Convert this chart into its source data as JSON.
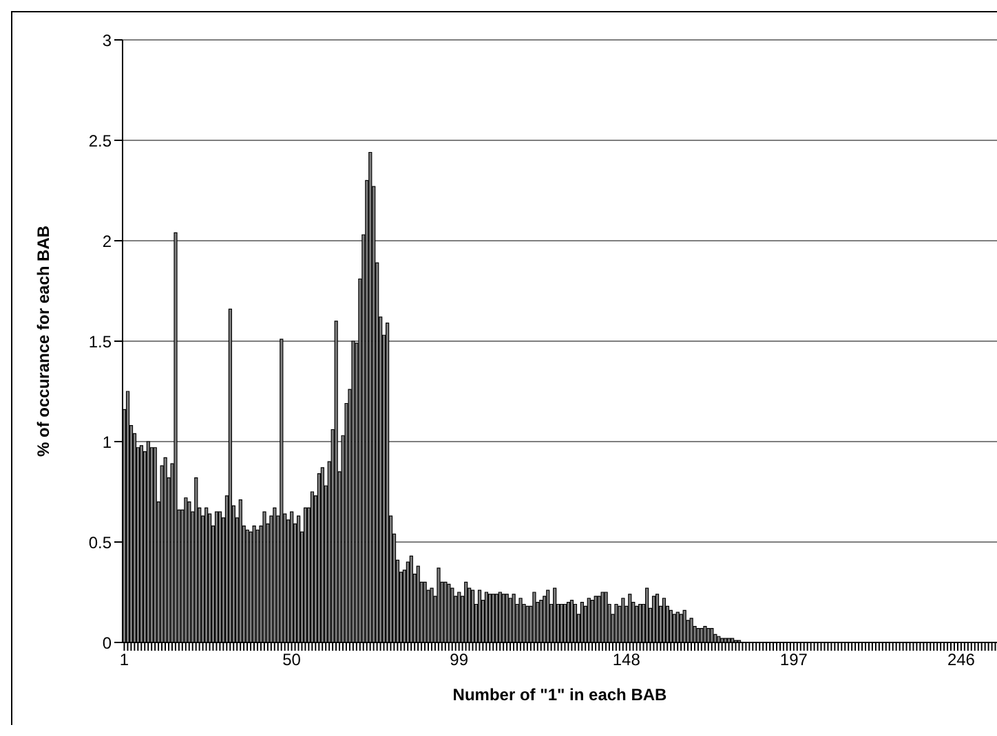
{
  "chart_data": {
    "type": "bar",
    "xlabel": "Number of \"1\" in each BAB",
    "ylabel": "% of occurance for each BAB",
    "categories": [
      "1",
      null,
      null,
      null,
      null,
      null,
      null,
      null,
      null,
      null,
      null,
      null,
      null,
      null,
      null,
      null,
      null,
      null,
      null,
      null,
      null,
      null,
      null,
      null,
      null,
      null,
      null,
      null,
      null,
      null,
      null,
      null,
      null,
      null,
      null,
      null,
      null,
      null,
      null,
      null,
      null,
      null,
      null,
      null,
      null,
      null,
      null,
      null,
      null,
      "50",
      null,
      null,
      null,
      null,
      null,
      null,
      null,
      null,
      null,
      null,
      null,
      null,
      null,
      null,
      null,
      null,
      null,
      null,
      null,
      null,
      null,
      null,
      null,
      null,
      null,
      null,
      null,
      null,
      null,
      null,
      null,
      null,
      null,
      null,
      null,
      null,
      null,
      null,
      null,
      null,
      null,
      null,
      null,
      null,
      null,
      null,
      null,
      null,
      "99",
      null,
      null,
      null,
      null,
      null,
      null,
      null,
      null,
      null,
      null,
      null,
      null,
      null,
      null,
      null,
      null,
      null,
      null,
      null,
      null,
      null,
      null,
      null,
      null,
      null,
      null,
      null,
      null,
      null,
      null,
      null,
      null,
      null,
      null,
      null,
      null,
      null,
      null,
      null,
      null,
      null,
      null,
      null,
      null,
      null,
      null,
      null,
      null,
      "148",
      null,
      null,
      null,
      null,
      null,
      null,
      null,
      null,
      null,
      null,
      null,
      null,
      null,
      null,
      null,
      null,
      null,
      null,
      null,
      null,
      null,
      null,
      null,
      null,
      null,
      null,
      null,
      null,
      null,
      null,
      null,
      null,
      null,
      null,
      null,
      null,
      null,
      null,
      null,
      null,
      null,
      null,
      null,
      null,
      null,
      null,
      null,
      null,
      "197",
      null,
      null,
      null,
      null,
      null,
      null,
      null,
      null,
      null,
      null,
      null,
      null,
      null,
      null,
      null,
      null,
      null,
      null,
      null,
      null,
      null,
      null,
      null,
      null,
      null,
      null,
      null,
      null,
      null,
      null,
      null,
      null,
      null,
      null,
      null,
      null,
      null,
      null,
      null,
      null,
      null,
      null,
      null,
      null,
      null,
      null,
      null,
      null,
      "246",
      null,
      null,
      null,
      null,
      null,
      null,
      null,
      null,
      null,
      null
    ],
    "values": [
      1.16,
      1.25,
      1.08,
      1.04,
      0.97,
      0.98,
      0.95,
      1.0,
      0.97,
      0.97,
      0.7,
      0.88,
      0.92,
      0.82,
      0.89,
      2.04,
      0.66,
      0.66,
      0.72,
      0.7,
      0.65,
      0.82,
      0.67,
      0.63,
      0.67,
      0.64,
      0.58,
      0.65,
      0.65,
      0.62,
      0.73,
      1.66,
      0.68,
      0.62,
      0.71,
      0.58,
      0.56,
      0.55,
      0.58,
      0.56,
      0.58,
      0.65,
      0.59,
      0.63,
      0.67,
      0.63,
      1.51,
      0.64,
      0.61,
      0.65,
      0.59,
      0.63,
      0.55,
      0.67,
      0.67,
      0.75,
      0.73,
      0.84,
      0.87,
      0.78,
      0.9,
      1.06,
      1.6,
      0.85,
      1.03,
      1.19,
      1.26,
      1.5,
      1.49,
      1.81,
      2.03,
      2.3,
      2.44,
      2.27,
      1.89,
      1.62,
      1.53,
      1.59,
      0.63,
      0.54,
      0.41,
      0.35,
      0.36,
      0.4,
      0.43,
      0.34,
      0.38,
      0.3,
      0.3,
      0.26,
      0.27,
      0.23,
      0.37,
      0.3,
      0.3,
      0.29,
      0.27,
      0.23,
      0.25,
      0.23,
      0.3,
      0.27,
      0.26,
      0.19,
      0.26,
      0.21,
      0.25,
      0.24,
      0.24,
      0.24,
      0.25,
      0.24,
      0.24,
      0.22,
      0.24,
      0.19,
      0.22,
      0.19,
      0.18,
      0.18,
      0.25,
      0.2,
      0.21,
      0.23,
      0.26,
      0.19,
      0.27,
      0.19,
      0.19,
      0.19,
      0.2,
      0.21,
      0.19,
      0.14,
      0.2,
      0.18,
      0.22,
      0.21,
      0.23,
      0.23,
      0.25,
      0.25,
      0.19,
      0.14,
      0.19,
      0.18,
      0.22,
      0.18,
      0.24,
      0.2,
      0.18,
      0.19,
      0.19,
      0.27,
      0.17,
      0.23,
      0.24,
      0.18,
      0.22,
      0.18,
      0.16,
      0.14,
      0.15,
      0.14,
      0.16,
      0.11,
      0.12,
      0.08,
      0.07,
      0.07,
      0.08,
      0.07,
      0.07,
      0.04,
      0.03,
      0.02,
      0.02,
      0.02,
      0.02,
      0.01,
      0.01,
      0,
      0,
      0,
      0,
      0,
      0,
      0,
      0,
      0,
      0,
      0,
      0,
      0,
      0,
      0,
      0,
      0,
      0,
      0,
      0,
      0,
      0,
      0,
      0,
      0,
      0,
      0,
      0,
      0,
      0,
      0,
      0,
      0,
      0,
      0,
      0,
      0,
      0,
      0,
      0,
      0,
      0,
      0,
      0,
      0,
      0,
      0,
      0,
      0,
      0,
      0,
      0,
      0,
      0,
      0,
      0,
      0,
      0,
      0,
      0,
      0,
      0,
      0,
      0,
      0,
      0,
      0,
      0,
      0,
      0,
      0,
      0,
      0,
      0,
      0
    ],
    "color": "#808080",
    "ylim": [
      0,
      3
    ],
    "yticks": [
      0,
      0.5,
      1,
      1.5,
      2,
      2.5,
      3
    ],
    "grid": "y"
  }
}
